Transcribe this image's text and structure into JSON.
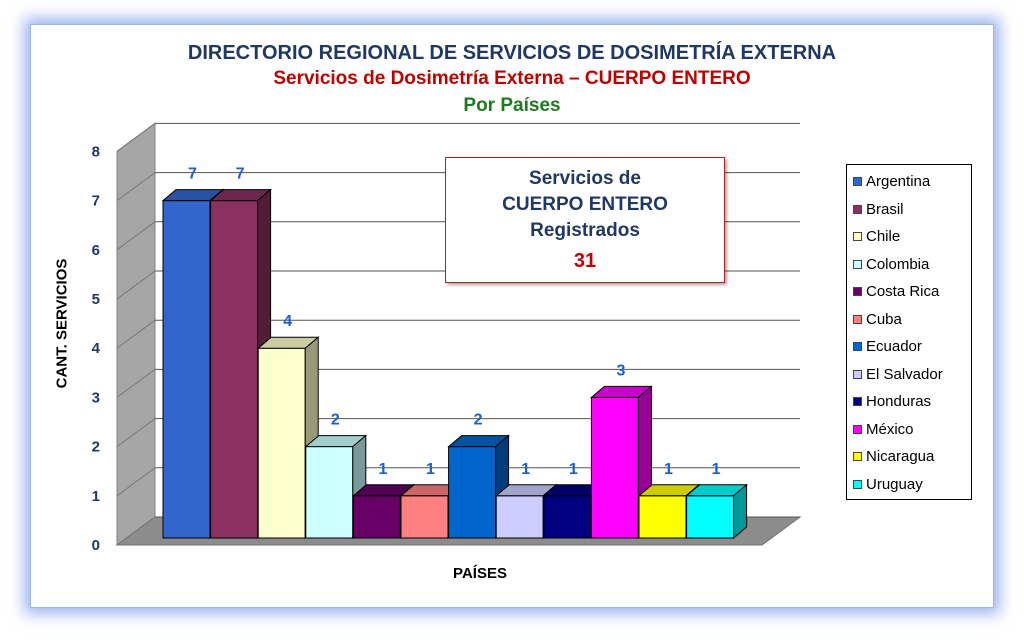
{
  "title": "DIRECTORIO REGIONAL DE SERVICIOS DE DOSIMETRÍA EXTERNA",
  "subtitle": "Servicios de Dosimetría Externa – CUERPO ENTERO",
  "subtitle2": "Por Países",
  "infobox": {
    "line1": "Servicios de",
    "line2": "CUERPO ENTERO",
    "line3": "Registrados",
    "total": "31"
  },
  "chart_data": {
    "type": "bar",
    "title": "DIRECTORIO REGIONAL DE SERVICIOS DE DOSIMETRÍA EXTERNA",
    "xlabel": "PAÍSES",
    "ylabel": "CANT. SERVICIOS",
    "ylim": [
      0,
      8
    ],
    "yticks": [
      "0",
      "1",
      "2",
      "3",
      "4",
      "5",
      "6",
      "7",
      "8"
    ],
    "grid": true,
    "legend_position": "right",
    "categories": [
      "Argentina",
      "Brasil",
      "Chile",
      "Colombia",
      "Costa Rica",
      "Cuba",
      "Ecuador",
      "El Salvador",
      "Honduras",
      "México",
      "Nicaragua",
      "Uruguay"
    ],
    "values": [
      7,
      7,
      4,
      2,
      1,
      1,
      2,
      1,
      1,
      3,
      1,
      1
    ],
    "data_labels": [
      "7",
      "7",
      "4",
      "2",
      "1",
      "1",
      "2",
      "1",
      "1",
      "3",
      "1",
      "1"
    ],
    "colors": [
      "#3366cc",
      "#8b3060",
      "#ffffcc",
      "#ccffff",
      "#660066",
      "#ff8080",
      "#0066cc",
      "#ccccff",
      "#000080",
      "#ff00ff",
      "#ffff00",
      "#00ffff"
    ]
  }
}
